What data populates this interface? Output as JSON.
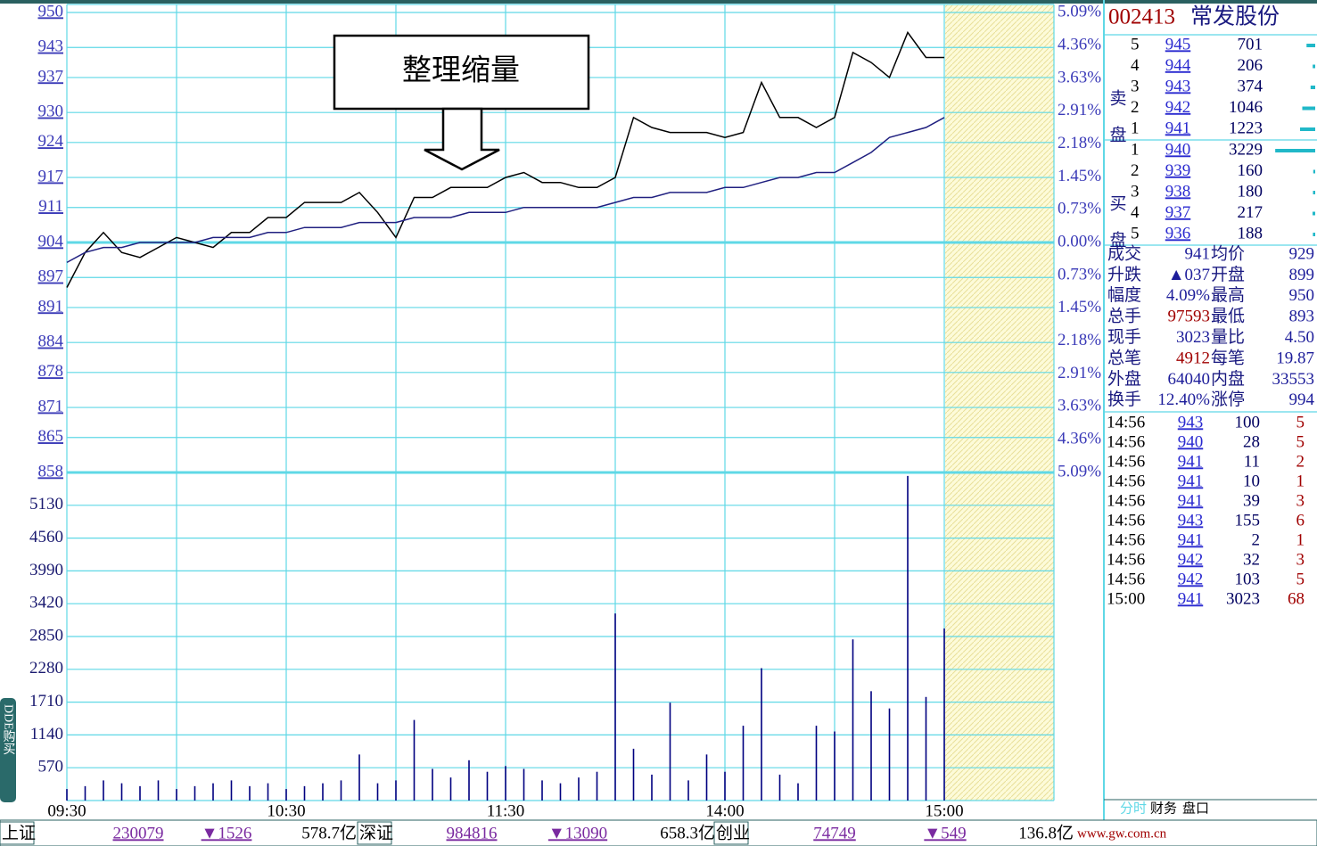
{
  "chart_data": [
    {
      "type": "line",
      "annotation": "整理缩量",
      "ylim": [
        858,
        950
      ],
      "yticks": [
        950,
        943,
        937,
        930,
        924,
        917,
        911,
        904,
        897,
        891,
        884,
        878,
        871,
        865,
        858
      ],
      "y2lim": [
        -5.09,
        5.09
      ],
      "y2ticks": [
        {
          "value": 5.09,
          "label": "5.09%"
        },
        {
          "value": 4.36,
          "label": "4.36%"
        },
        {
          "value": 3.63,
          "label": "3.63%"
        },
        {
          "value": 2.91,
          "label": "2.91%"
        },
        {
          "value": 2.18,
          "label": "2.18%"
        },
        {
          "value": 1.45,
          "label": "1.45%"
        },
        {
          "value": 0.73,
          "label": "0.73%"
        },
        {
          "value": 0,
          "label": "0.00%"
        },
        {
          "value": -0.73,
          "label": "0.73%"
        },
        {
          "value": -1.45,
          "label": "1.45%"
        },
        {
          "value": -2.18,
          "label": "2.18%"
        },
        {
          "value": -2.91,
          "label": "2.91%"
        },
        {
          "value": -3.63,
          "label": "3.63%"
        },
        {
          "value": -4.36,
          "label": "4.36%"
        },
        {
          "value": -5.09,
          "label": "5.09%"
        }
      ],
      "grid": true,
      "series": [
        {
          "color": "#000000",
          "values": [
            895,
            902,
            906,
            902,
            901,
            903,
            905,
            904,
            903,
            906,
            906,
            909,
            909,
            912,
            912,
            912,
            914,
            910,
            905,
            913,
            913,
            915,
            915,
            915,
            917,
            918,
            916,
            916,
            915,
            915,
            917,
            929,
            927,
            926,
            926,
            926,
            925,
            926,
            936,
            929,
            929,
            927,
            929,
            942,
            940,
            937,
            946,
            941,
            941
          ]
        },
        {
          "color": "#202080",
          "values": [
            900,
            902,
            903,
            903,
            904,
            904,
            904,
            904,
            905,
            905,
            905,
            906,
            906,
            907,
            907,
            907,
            908,
            908,
            908,
            909,
            909,
            909,
            910,
            910,
            910,
            911,
            911,
            911,
            911,
            911,
            912,
            913,
            913,
            914,
            914,
            914,
            915,
            915,
            916,
            917,
            917,
            918,
            918,
            920,
            922,
            925,
            926,
            927,
            929
          ]
        }
      ]
    },
    {
      "type": "bar",
      "color": "#000080",
      "ylim": [
        0,
        5700
      ],
      "yticks": [
        5130,
        4560,
        3990,
        3420,
        2850,
        2280,
        1710,
        1140,
        570
      ],
      "categories": [
        "09:30",
        null,
        null,
        null,
        null,
        null,
        null,
        null,
        null,
        null,
        null,
        null,
        "10:30",
        null,
        null,
        null,
        null,
        null,
        null,
        null,
        null,
        null,
        null,
        null,
        "11:30",
        null,
        null,
        null,
        null,
        null,
        null,
        null,
        null,
        null,
        null,
        null,
        "14:00",
        null,
        null,
        null,
        null,
        null,
        null,
        null,
        null,
        null,
        null,
        null,
        "15:00"
      ],
      "values": [
        200,
        250,
        350,
        300,
        250,
        350,
        200,
        250,
        300,
        350,
        250,
        300,
        200,
        250,
        300,
        350,
        800,
        300,
        350,
        1400,
        550,
        400,
        700,
        500,
        600,
        550,
        350,
        300,
        400,
        500,
        3250,
        900,
        450,
        1700,
        350,
        800,
        500,
        1300,
        2300,
        450,
        300,
        1300,
        1200,
        2800,
        1900,
        1600,
        5640,
        1800,
        2990
      ]
    }
  ],
  "side_tab": "DDE购买",
  "quote_panel": {
    "code": "002413",
    "name": "常发股份",
    "sell_label": "卖盘",
    "buy_label": "买盘",
    "sell": [
      {
        "level": 5,
        "price": 945,
        "volume": 701
      },
      {
        "level": 4,
        "price": 944,
        "volume": 206
      },
      {
        "level": 3,
        "price": 943,
        "volume": 374
      },
      {
        "level": 2,
        "price": 942,
        "volume": 1046
      },
      {
        "level": 1,
        "price": 941,
        "volume": 1223
      }
    ],
    "buy": [
      {
        "level": 1,
        "price": 940,
        "volume": 3229
      },
      {
        "level": 2,
        "price": 939,
        "volume": 160
      },
      {
        "level": 3,
        "price": 938,
        "volume": 180
      },
      {
        "level": 4,
        "price": 937,
        "volume": 217
      },
      {
        "level": 5,
        "price": 936,
        "volume": 188
      }
    ],
    "stats": [
      [
        "成交",
        "941",
        "均价",
        "929"
      ],
      [
        "升跌",
        "▲037",
        "开盘",
        "899"
      ],
      [
        "幅度",
        "4.09%",
        "最高",
        "950"
      ],
      [
        "总手",
        "97593",
        "最低",
        "893"
      ],
      [
        "现手",
        "3023",
        "量比",
        "4.50"
      ],
      [
        "总笔",
        "4912",
        "每笔",
        "19.87"
      ],
      [
        "外盘",
        "64040",
        "内盘",
        "33553"
      ],
      [
        "换手",
        "12.40%",
        "涨停",
        "994"
      ]
    ],
    "trades": [
      [
        "14:56",
        "943",
        "100",
        "5"
      ],
      [
        "14:56",
        "940",
        "28",
        "5"
      ],
      [
        "14:56",
        "941",
        "11",
        "2"
      ],
      [
        "14:56",
        "941",
        "10",
        "1"
      ],
      [
        "14:56",
        "941",
        "39",
        "3"
      ],
      [
        "14:56",
        "943",
        "155",
        "6"
      ],
      [
        "14:56",
        "941",
        "2",
        "1"
      ],
      [
        "14:56",
        "942",
        "32",
        "3"
      ],
      [
        "14:56",
        "942",
        "103",
        "5"
      ],
      [
        "15:00",
        "941",
        "3023",
        "68"
      ]
    ],
    "tabs": [
      "分时",
      "财务",
      "盘口"
    ]
  },
  "status_bar": [
    "上证",
    "230079",
    "▼1526",
    "578.7亿",
    "深证",
    "984816",
    "▼13090",
    "658.3亿",
    "创业",
    "74749",
    "▼549",
    "136.8亿",
    "www.gw.com.cn"
  ]
}
